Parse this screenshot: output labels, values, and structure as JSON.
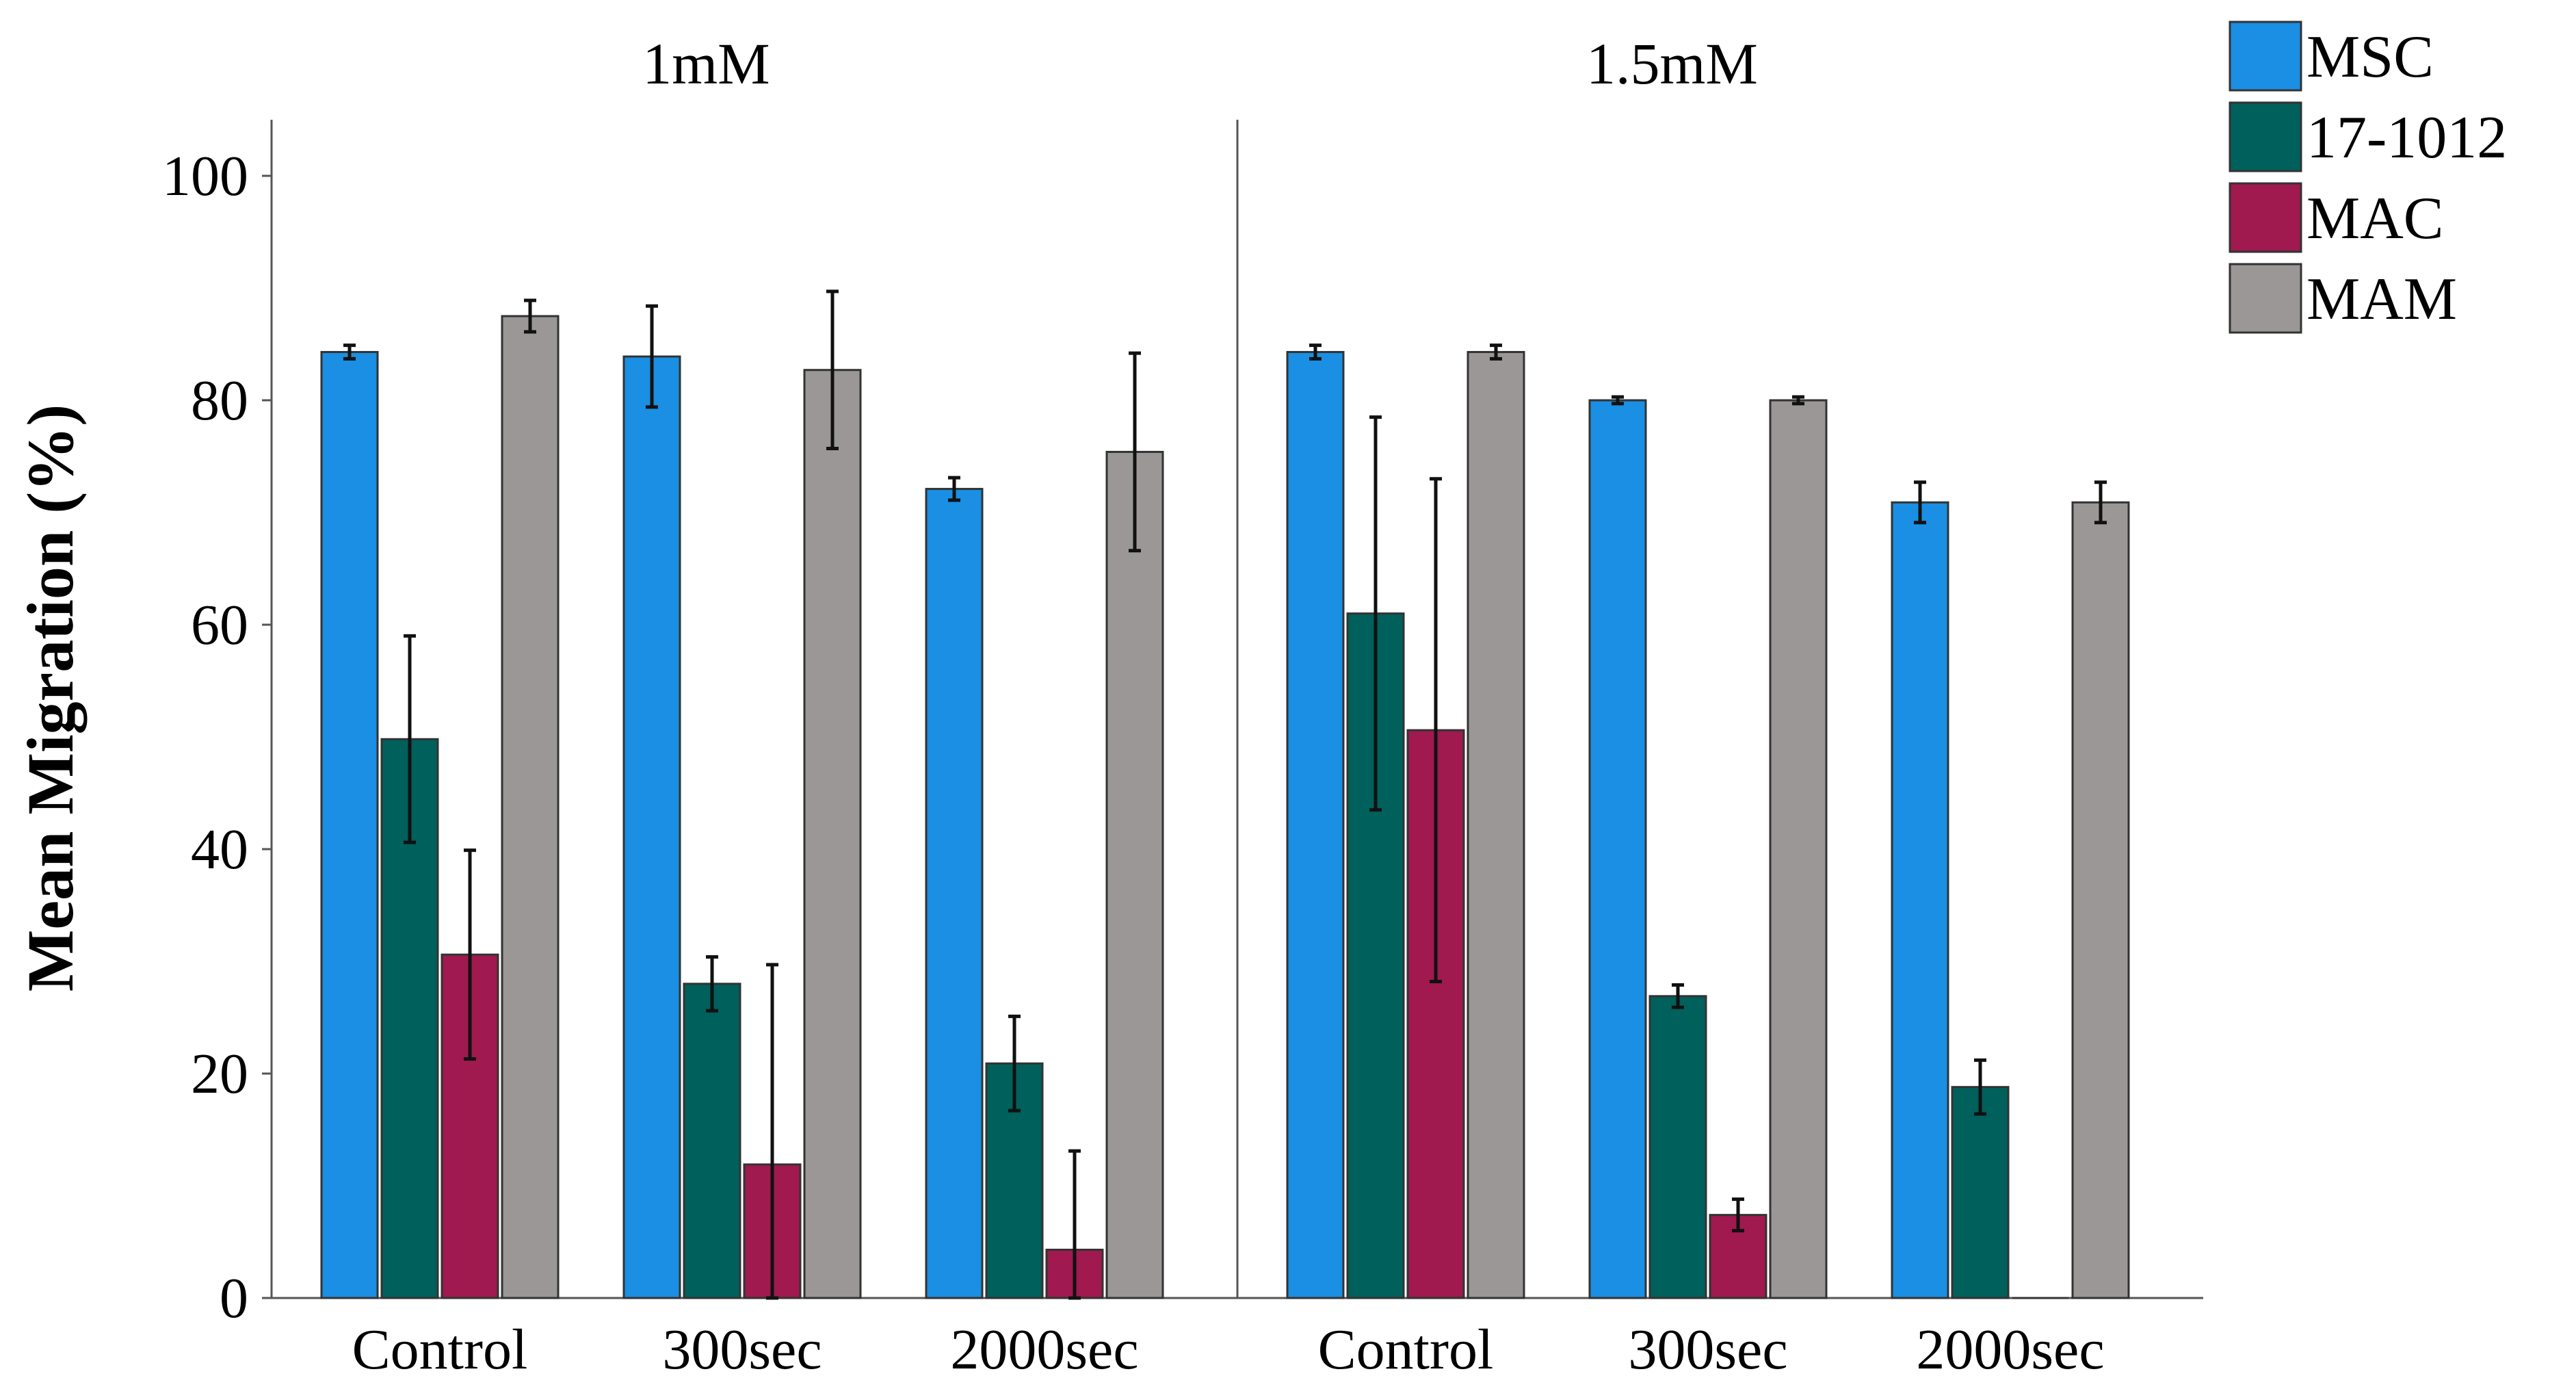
{
  "chart_data": {
    "type": "bar",
    "ylabel": "Mean Migration (%)",
    "xlabel": "",
    "ylim": [
      0,
      105
    ],
    "yticks": [
      0,
      20,
      40,
      60,
      80,
      100
    ],
    "grid": false,
    "legend_position": "top-right outside",
    "categories": [
      "Control",
      "300sec",
      "2000sec"
    ],
    "series_names": [
      "MSC",
      "17-1012",
      "MAC",
      "MAM"
    ],
    "colors": {
      "MSC": "#1a8fe3",
      "17-1012": "#00605b",
      "MAC": "#a0194f",
      "MAM": "#9a9796"
    },
    "panels": [
      {
        "title": "1mM",
        "series": [
          {
            "name": "MSC",
            "values": [
              84.3,
              83.9,
              72.1
            ],
            "errors": [
              0.6,
              4.5,
              1.0
            ]
          },
          {
            "name": "17-1012",
            "values": [
              49.8,
              28.0,
              20.9
            ],
            "errors": [
              9.2,
              2.4,
              4.2
            ]
          },
          {
            "name": "MAC",
            "values": [
              30.6,
              11.9,
              4.3
            ],
            "errors": [
              9.3,
              17.8,
              8.8
            ]
          },
          {
            "name": "MAM",
            "values": [
              87.5,
              82.7,
              75.4
            ],
            "errors": [
              1.4,
              7.0,
              8.8
            ]
          }
        ]
      },
      {
        "title": "1.5mM",
        "series": [
          {
            "name": "MSC",
            "values": [
              84.3,
              80.0,
              70.9
            ],
            "errors": [
              0.6,
              0.3,
              1.8
            ]
          },
          {
            "name": "17-1012",
            "values": [
              61.0,
              26.9,
              18.8
            ],
            "errors": [
              17.5,
              1.0,
              2.4
            ]
          },
          {
            "name": "MAC",
            "values": [
              50.6,
              7.4,
              0.0
            ],
            "errors": [
              22.4,
              1.4,
              0.0
            ]
          },
          {
            "name": "MAM",
            "values": [
              84.3,
              80.0,
              70.9
            ],
            "errors": [
              0.6,
              0.3,
              1.8
            ]
          }
        ]
      }
    ]
  }
}
